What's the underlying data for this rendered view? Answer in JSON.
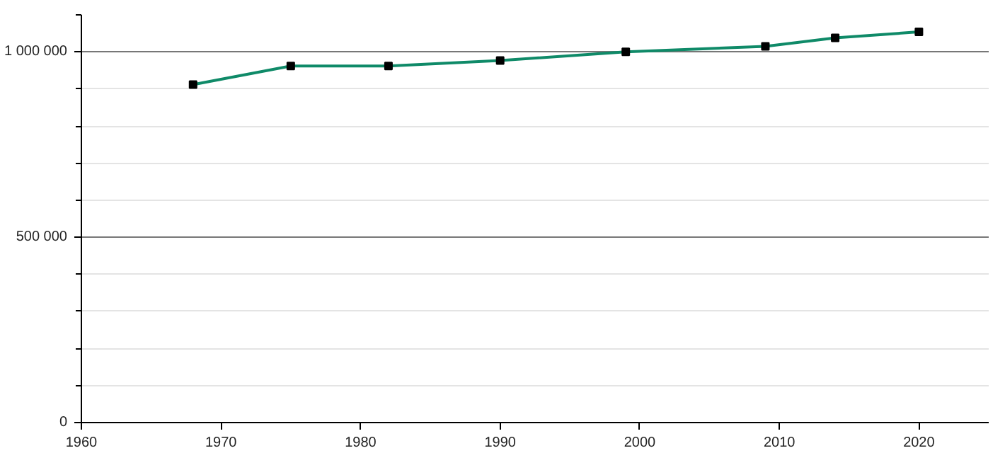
{
  "chart_data": {
    "type": "line",
    "x": [
      1968,
      1975,
      1982,
      1990,
      1999,
      2009,
      2014,
      2020
    ],
    "series": [
      {
        "color": "#0f8a68",
        "values": [
          912000,
          962000,
          962000,
          977000,
          1000000,
          1015000,
          1038000,
          1054000
        ]
      }
    ],
    "xlim": [
      1960,
      2025
    ],
    "xticks": [
      1960,
      1970,
      1980,
      1990,
      2000,
      2010,
      2020
    ],
    "ylim": [
      0,
      1100000
    ],
    "yticks": [
      {
        "value": 0,
        "label": "0"
      },
      {
        "value": 100000,
        "label": null
      },
      {
        "value": 200000,
        "label": null
      },
      {
        "value": 300000,
        "label": null
      },
      {
        "value": 400000,
        "label": null
      },
      {
        "value": 500000,
        "label": "500 000"
      },
      {
        "value": 600000,
        "label": null
      },
      {
        "value": 700000,
        "label": null
      },
      {
        "value": 800000,
        "label": null
      },
      {
        "value": 900000,
        "label": null
      },
      {
        "value": 1000000,
        "label": "1 000 000"
      },
      {
        "value": 1100000,
        "label": null
      }
    ],
    "grid": "y",
    "marker": "square",
    "line_style": "solid"
  }
}
